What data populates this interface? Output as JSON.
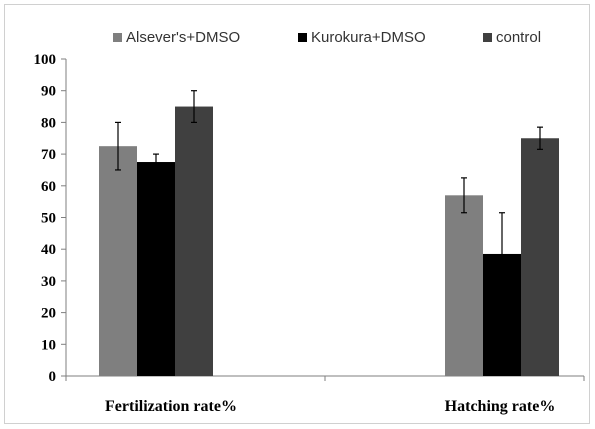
{
  "chart_data": {
    "type": "bar",
    "categories": [
      "Fertilization rate%",
      "Hatching rate%"
    ],
    "series": [
      {
        "name": "Alsever's+DMSO",
        "color": "#7f7f7f",
        "values": [
          72.5,
          57
        ],
        "errors": [
          7.5,
          5.5
        ]
      },
      {
        "name": "Kurokura+DMSO",
        "color": "#000000",
        "values": [
          67.5,
          38.5
        ],
        "errors": [
          2.5,
          13
        ]
      },
      {
        "name": "control",
        "color": "#404040",
        "values": [
          85,
          75
        ],
        "errors": [
          5,
          3.5
        ]
      }
    ],
    "ylim": [
      0,
      100
    ],
    "yticks": [
      0,
      10,
      20,
      30,
      40,
      50,
      60,
      70,
      80,
      90,
      100
    ],
    "legend_position": "top",
    "grid": false,
    "title": "",
    "xlabel": "",
    "ylabel": ""
  }
}
